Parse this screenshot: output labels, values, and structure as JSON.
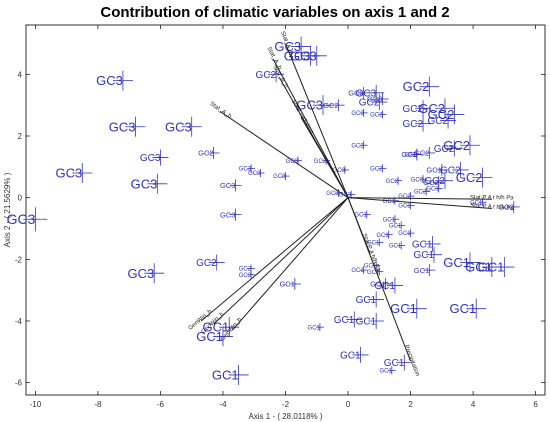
{
  "chart_data": {
    "type": "scatter",
    "title": "Contribution of climatic variables on axis 1 and 2",
    "xlabel": "Axis 1 - ( 28.0118% )",
    "ylabel": "Axis 2 - ( 21.5629% )",
    "xlim": [
      -10.3,
      6.3
    ],
    "ylim": [
      -6.4,
      5.6
    ],
    "xticks": [
      -10,
      -8,
      -6,
      -4,
      -2,
      0,
      2,
      4,
      6
    ],
    "yticks": [
      -6,
      -4,
      -2,
      0,
      2,
      4
    ],
    "grid": false,
    "marker_color": "#3333bb",
    "vector_color": "#222222",
    "points": [
      {
        "x": -10,
        "y": -0.7,
        "label": "GC3",
        "size": "xl"
      },
      {
        "x": -8.5,
        "y": 0.8,
        "label": "GC3",
        "size": "l"
      },
      {
        "x": -7.2,
        "y": 3.8,
        "label": "GC3",
        "size": "l"
      },
      {
        "x": -6.8,
        "y": 2.3,
        "label": "GC3",
        "size": "l"
      },
      {
        "x": -6,
        "y": 1.3,
        "label": "GC3",
        "size": "m"
      },
      {
        "x": -6.1,
        "y": 0.45,
        "label": "GC3",
        "size": "l"
      },
      {
        "x": -6.2,
        "y": -2.45,
        "label": "GC3",
        "size": "l"
      },
      {
        "x": -5,
        "y": 2.3,
        "label": "GC3",
        "size": "l"
      },
      {
        "x": -4.3,
        "y": 1.45,
        "label": "GC2",
        "size": "s"
      },
      {
        "x": -3.6,
        "y": 0.4,
        "label": "GC3",
        "size": "s"
      },
      {
        "x": -3.6,
        "y": -0.55,
        "label": "GC3",
        "size": "s"
      },
      {
        "x": -4.2,
        "y": -2.1,
        "label": "GC2",
        "size": "m"
      },
      {
        "x": -3.1,
        "y": 0.95,
        "label": "GC3",
        "size": "xs"
      },
      {
        "x": -2.8,
        "y": 0.8,
        "label": "GC3",
        "size": "xs"
      },
      {
        "x": -3.1,
        "y": -2.3,
        "label": "GC2",
        "size": "xs"
      },
      {
        "x": -3.1,
        "y": -2.5,
        "label": "GC2",
        "size": "xs"
      },
      {
        "x": -2.0,
        "y": 0.7,
        "label": "GC3",
        "size": "xs"
      },
      {
        "x": -1.6,
        "y": 1.2,
        "label": "GC3",
        "size": "xs"
      },
      {
        "x": -1.7,
        "y": -2.8,
        "label": "GC1",
        "size": "s"
      },
      {
        "x": -1.5,
        "y": 4.9,
        "label": "GC3",
        "size": "l"
      },
      {
        "x": -1.2,
        "y": 4.6,
        "label": "GC3",
        "size": "l"
      },
      {
        "x": -1.0,
        "y": 4.6,
        "label": "GC3",
        "size": "l"
      },
      {
        "x": -2.3,
        "y": 4.0,
        "label": "GC2",
        "size": "m"
      },
      {
        "x": -0.8,
        "y": 3.0,
        "label": "GC3",
        "size": "l"
      },
      {
        "x": -0.3,
        "y": 3.0,
        "label": "GC2",
        "size": "s"
      },
      {
        "x": -0.7,
        "y": 1.2,
        "label": "GC2",
        "size": "xs"
      },
      {
        "x": -0.1,
        "y": 0.9,
        "label": "GC3",
        "size": "xs"
      },
      {
        "x": -0.3,
        "y": 0.15,
        "label": "GC3",
        "size": "xs"
      },
      {
        "x": 0.1,
        "y": 0.1,
        "label": "GC3",
        "size": "xs"
      },
      {
        "x": 0.5,
        "y": 3.4,
        "label": "GC3",
        "size": "s"
      },
      {
        "x": 0.9,
        "y": 3.4,
        "label": "GC3",
        "size": "m"
      },
      {
        "x": 1.1,
        "y": 3.2,
        "label": "GC3",
        "size": "s"
      },
      {
        "x": 1.1,
        "y": 2.7,
        "label": "GC2",
        "size": "xs"
      },
      {
        "x": 0.5,
        "y": 2.75,
        "label": "GC2",
        "size": "xs"
      },
      {
        "x": 1.0,
        "y": 3.1,
        "label": "GC2",
        "size": "m"
      },
      {
        "x": 0.5,
        "y": 1.7,
        "label": "GC2",
        "size": "xs"
      },
      {
        "x": 1.1,
        "y": 0.95,
        "label": "GC2",
        "size": "xs"
      },
      {
        "x": 1.6,
        "y": 0.55,
        "label": "GC2",
        "size": "xs"
      },
      {
        "x": 2.0,
        "y": 0.05,
        "label": "GC2",
        "size": "xs"
      },
      {
        "x": 2.2,
        "y": 1.4,
        "label": "GC2",
        "size": "xs"
      },
      {
        "x": 2.6,
        "y": 3.6,
        "label": "GC2",
        "size": "l"
      },
      {
        "x": 2.4,
        "y": 2.9,
        "label": "GC2",
        "size": "m"
      },
      {
        "x": 3.1,
        "y": 2.9,
        "label": "GC2",
        "size": "l"
      },
      {
        "x": 3.4,
        "y": 2.7,
        "label": "GC2",
        "size": "l"
      },
      {
        "x": 3.2,
        "y": 2.5,
        "label": "GC2",
        "size": "m"
      },
      {
        "x": 2.4,
        "y": 2.4,
        "label": "GC2",
        "size": "m"
      },
      {
        "x": 2.2,
        "y": 1.4,
        "label": "GC2",
        "size": "s"
      },
      {
        "x": 2.6,
        "y": 1.45,
        "label": "GC2",
        "size": "s"
      },
      {
        "x": 3.4,
        "y": 1.6,
        "label": "GC2",
        "size": "m"
      },
      {
        "x": 3.9,
        "y": 1.7,
        "label": "GC2",
        "size": "l"
      },
      {
        "x": 3.0,
        "y": 0.9,
        "label": "GC1",
        "size": "s"
      },
      {
        "x": 3.6,
        "y": 0.9,
        "label": "GC2",
        "size": "m"
      },
      {
        "x": 3.1,
        "y": 0.55,
        "label": "GC2",
        "size": "m"
      },
      {
        "x": 2.9,
        "y": 0.5,
        "label": "GC2",
        "size": "s"
      },
      {
        "x": 2.9,
        "y": 0.3,
        "label": "GC1",
        "size": "xs"
      },
      {
        "x": 2.4,
        "y": 0.6,
        "label": "GC3",
        "size": "xs"
      },
      {
        "x": 2.5,
        "y": 0.2,
        "label": "GC2",
        "size": "xs"
      },
      {
        "x": 4.3,
        "y": 0.65,
        "label": "GC2",
        "size": "l"
      },
      {
        "x": 4.3,
        "y": -0.15,
        "label": "GC1",
        "size": "xs"
      },
      {
        "x": 5.3,
        "y": -0.3,
        "label": "GC2",
        "size": "s"
      },
      {
        "x": 1.5,
        "y": -0.1,
        "label": "GC1",
        "size": "xs"
      },
      {
        "x": 2.0,
        "y": -0.25,
        "label": "GC1",
        "size": "xs"
      },
      {
        "x": 0.6,
        "y": -0.55,
        "label": "GC1",
        "size": "xs"
      },
      {
        "x": 1.5,
        "y": -0.7,
        "label": "GC1",
        "size": "xs"
      },
      {
        "x": 1.7,
        "y": -0.9,
        "label": "GC1",
        "size": "xs"
      },
      {
        "x": 1.0,
        "y": -1.45,
        "label": "GC1",
        "size": "xs"
      },
      {
        "x": 1.3,
        "y": -1.2,
        "label": "GC1",
        "size": "xs"
      },
      {
        "x": 1.7,
        "y": -1.55,
        "label": "GC1",
        "size": "xs"
      },
      {
        "x": 2.0,
        "y": -1.15,
        "label": "GC1",
        "size": "xs"
      },
      {
        "x": 2.7,
        "y": -1.5,
        "label": "GC1",
        "size": "m"
      },
      {
        "x": 2.75,
        "y": -1.85,
        "label": "GC1",
        "size": "m"
      },
      {
        "x": 3.9,
        "y": -2.1,
        "label": "GC1",
        "size": "l"
      },
      {
        "x": 4.6,
        "y": -2.25,
        "label": "GC1",
        "size": "l"
      },
      {
        "x": 5.0,
        "y": -2.25,
        "label": "GC1",
        "size": "l"
      },
      {
        "x": 2.6,
        "y": -2.35,
        "label": "GC1",
        "size": "s"
      },
      {
        "x": 0.9,
        "y": -2.2,
        "label": "GC1",
        "size": "xs"
      },
      {
        "x": 1.0,
        "y": -2.4,
        "label": "GC1",
        "size": "xs"
      },
      {
        "x": 0.5,
        "y": -2.35,
        "label": "GC1",
        "size": "xs"
      },
      {
        "x": 1.2,
        "y": -2.8,
        "label": "GC1",
        "size": "s"
      },
      {
        "x": 1.5,
        "y": -2.85,
        "label": "GC1",
        "size": "m"
      },
      {
        "x": 0.9,
        "y": -3.3,
        "label": "GC1",
        "size": "m"
      },
      {
        "x": 2.2,
        "y": -3.6,
        "label": "GC1",
        "size": "l"
      },
      {
        "x": 4.1,
        "y": -3.6,
        "label": "GC1",
        "size": "l"
      },
      {
        "x": 0.2,
        "y": -3.95,
        "label": "GC1",
        "size": "m"
      },
      {
        "x": 0.9,
        "y": -4.0,
        "label": "GC1",
        "size": "m"
      },
      {
        "x": -0.9,
        "y": -4.2,
        "label": "GC1",
        "size": "xs"
      },
      {
        "x": -3.8,
        "y": -4.2,
        "label": "GC1",
        "size": "l"
      },
      {
        "x": -4.0,
        "y": -4.5,
        "label": "GC1",
        "size": "l"
      },
      {
        "x": 0.4,
        "y": -5.1,
        "label": "GC1",
        "size": "m"
      },
      {
        "x": 1.8,
        "y": -5.35,
        "label": "GC1",
        "size": "m"
      },
      {
        "x": 1.4,
        "y": -5.6,
        "label": "GC1",
        "size": "xs"
      },
      {
        "x": -3.5,
        "y": -5.75,
        "label": "GC1",
        "size": "l"
      }
    ],
    "vectors": [
      {
        "x": -2.0,
        "y": 5.0,
        "label": "Stat_A_h"
      },
      {
        "x": -2.4,
        "y": 4.5,
        "label": "Stat_A_h"
      },
      {
        "x": -2.2,
        "y": 3.9,
        "label": "Stat_A_h"
      },
      {
        "x": -4.1,
        "y": 2.8,
        "label": "Stat_A_h"
      },
      {
        "x": -1.5,
        "y": 2.6,
        "label": "Solar radiation"
      },
      {
        "x": 4.6,
        "y": -0.05,
        "label": "Stat P A t h/h Pa"
      },
      {
        "x": 4.6,
        "y": -0.35,
        "label": "Stat P A t h/h Pa"
      },
      {
        "x": -4.7,
        "y": -4.0,
        "label": "GenWin_h"
      },
      {
        "x": -4.3,
        "y": -4.1,
        "label": "GenWin_h"
      },
      {
        "x": -3.7,
        "y": -4.3,
        "label": "GenWin_h"
      },
      {
        "x": 2.0,
        "y": -5.3,
        "label": "Precipitation"
      },
      {
        "x": 0.7,
        "y": -1.8,
        "label": "Stat P A h/h Pa"
      }
    ]
  }
}
